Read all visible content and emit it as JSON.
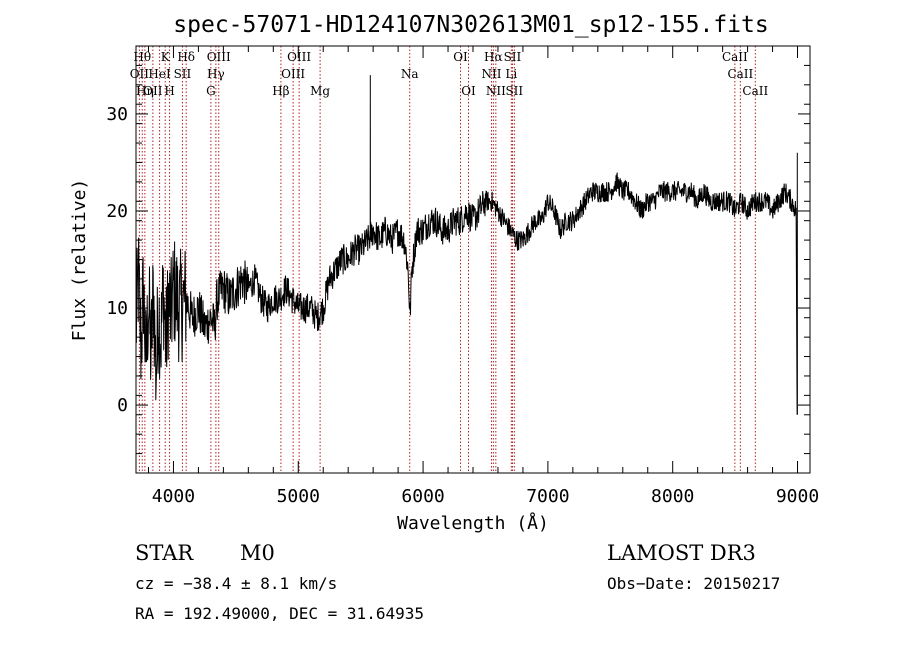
{
  "chart_data": {
    "type": "line",
    "title": "spec-57071-HD124107N302613M01_sp12-155.fits",
    "xlabel": "Wavelength (Å)",
    "ylabel": "Flux (relative)",
    "xlim": [
      3700,
      9100
    ],
    "ylim": [
      -7,
      37
    ],
    "xticks": [
      4000,
      5000,
      6000,
      7000,
      8000,
      9000
    ],
    "yticks": [
      0,
      10,
      20,
      30
    ],
    "series": [
      {
        "name": "flux",
        "anchors": [
          [
            3700,
            8
          ],
          [
            3720,
            13
          ],
          [
            3740,
            6
          ],
          [
            3760,
            12
          ],
          [
            3780,
            4
          ],
          [
            3800,
            11
          ],
          [
            3820,
            5
          ],
          [
            3840,
            12
          ],
          [
            3860,
            3
          ],
          [
            3880,
            10
          ],
          [
            3900,
            7
          ],
          [
            3920,
            12
          ],
          [
            3940,
            6
          ],
          [
            3960,
            11
          ],
          [
            3980,
            9
          ],
          [
            4000,
            12
          ],
          [
            4050,
            10
          ],
          [
            4100,
            11
          ],
          [
            4150,
            9
          ],
          [
            4200,
            10
          ],
          [
            4250,
            8
          ],
          [
            4300,
            9
          ],
          [
            4330,
            8
          ],
          [
            4350,
            11
          ],
          [
            4400,
            12
          ],
          [
            4450,
            11
          ],
          [
            4500,
            12
          ],
          [
            4550,
            13
          ],
          [
            4600,
            12
          ],
          [
            4650,
            13
          ],
          [
            4700,
            11
          ],
          [
            4750,
            10
          ],
          [
            4800,
            11
          ],
          [
            4850,
            11
          ],
          [
            4900,
            12
          ],
          [
            4950,
            11
          ],
          [
            5000,
            10
          ],
          [
            5050,
            10
          ],
          [
            5100,
            10
          ],
          [
            5150,
            9
          ],
          [
            5200,
            10
          ],
          [
            5250,
            13
          ],
          [
            5300,
            14
          ],
          [
            5350,
            15
          ],
          [
            5400,
            15
          ],
          [
            5450,
            16
          ],
          [
            5500,
            16
          ],
          [
            5560,
            17
          ],
          [
            5600,
            18
          ],
          [
            5650,
            17
          ],
          [
            5700,
            18
          ],
          [
            5750,
            17
          ],
          [
            5800,
            18
          ],
          [
            5850,
            17
          ],
          [
            5880,
            14
          ],
          [
            5895,
            9
          ],
          [
            5910,
            14
          ],
          [
            5950,
            18
          ],
          [
            6000,
            18
          ],
          [
            6050,
            19
          ],
          [
            6100,
            19
          ],
          [
            6150,
            18
          ],
          [
            6200,
            18
          ],
          [
            6250,
            19
          ],
          [
            6300,
            19
          ],
          [
            6350,
            20
          ],
          [
            6400,
            19
          ],
          [
            6450,
            20
          ],
          [
            6500,
            21
          ],
          [
            6550,
            21
          ],
          [
            6600,
            20
          ],
          [
            6650,
            19
          ],
          [
            6700,
            18
          ],
          [
            6750,
            17
          ],
          [
            6800,
            17
          ],
          [
            6850,
            18
          ],
          [
            6900,
            19
          ],
          [
            6950,
            19
          ],
          [
            7000,
            21
          ],
          [
            7050,
            20
          ],
          [
            7100,
            18
          ],
          [
            7150,
            19
          ],
          [
            7200,
            19
          ],
          [
            7250,
            20
          ],
          [
            7300,
            21
          ],
          [
            7350,
            22
          ],
          [
            7400,
            22
          ],
          [
            7450,
            22
          ],
          [
            7500,
            22
          ],
          [
            7550,
            23
          ],
          [
            7600,
            22
          ],
          [
            7650,
            22
          ],
          [
            7700,
            21
          ],
          [
            7750,
            20
          ],
          [
            7800,
            21
          ],
          [
            7850,
            21
          ],
          [
            7900,
            22
          ],
          [
            7950,
            22
          ],
          [
            8000,
            22
          ],
          [
            8050,
            22
          ],
          [
            8100,
            22
          ],
          [
            8150,
            22
          ],
          [
            8200,
            21
          ],
          [
            8250,
            22
          ],
          [
            8300,
            21
          ],
          [
            8350,
            21
          ],
          [
            8400,
            21
          ],
          [
            8450,
            21
          ],
          [
            8500,
            20
          ],
          [
            8550,
            21
          ],
          [
            8600,
            20
          ],
          [
            8650,
            21
          ],
          [
            8700,
            21
          ],
          [
            8750,
            21
          ],
          [
            8800,
            20
          ],
          [
            8850,
            21
          ],
          [
            8900,
            22
          ],
          [
            8950,
            21
          ],
          [
            8990,
            20
          ]
        ],
        "spikes": [
          {
            "x": 5577,
            "y": 34,
            "base": 17
          },
          {
            "x": 8998,
            "y": 26,
            "base": -1
          }
        ]
      }
    ],
    "lines": [
      {
        "wave": 3727,
        "label": "OII",
        "row": 2
      },
      {
        "wave": 3750,
        "label": "Hθ",
        "row": 1
      },
      {
        "wave": 3771,
        "label": "Hη",
        "row": 3
      },
      {
        "wave": 3835,
        "label": "OII",
        "row": 3
      },
      {
        "wave": 3889,
        "label": "HeI",
        "row": 2
      },
      {
        "wave": 3934,
        "label": "K",
        "row": 1
      },
      {
        "wave": 3969,
        "label": "H",
        "row": 3
      },
      {
        "wave": 4072,
        "label": "SII",
        "row": 2
      },
      {
        "wave": 4102,
        "label": "Hδ",
        "row": 1
      },
      {
        "wave": 4300,
        "label": "G",
        "row": 3
      },
      {
        "wave": 4340,
        "label": "Hγ",
        "row": 2
      },
      {
        "wave": 4363,
        "label": "OIII",
        "row": 1
      },
      {
        "wave": 4861,
        "label": "Hβ",
        "row": 3
      },
      {
        "wave": 4959,
        "label": "OIII",
        "row": 2
      },
      {
        "wave": 5007,
        "label": "OIII",
        "row": 1
      },
      {
        "wave": 5175,
        "label": "Mg",
        "row": 3
      },
      {
        "wave": 5893,
        "label": "Na",
        "row": 2
      },
      {
        "wave": 6300,
        "label": "OI",
        "row": 1
      },
      {
        "wave": 6364,
        "label": "OI",
        "row": 3
      },
      {
        "wave": 6548,
        "label": "NII",
        "row": 2
      },
      {
        "wave": 6563,
        "label": "Hα",
        "row": 1
      },
      {
        "wave": 6583,
        "label": "NII",
        "row": 3
      },
      {
        "wave": 6707,
        "label": "Li",
        "row": 2
      },
      {
        "wave": 6716,
        "label": "SII",
        "row": 1
      },
      {
        "wave": 6731,
        "label": "SII",
        "row": 3
      },
      {
        "wave": 8498,
        "label": "CaII",
        "row": 1
      },
      {
        "wave": 8542,
        "label": "CaII",
        "row": 2
      },
      {
        "wave": 8662,
        "label": "CaII",
        "row": 3
      }
    ]
  },
  "footer": {
    "obj_class": "STAR",
    "subclass": "M0",
    "survey": "LAMOST DR3",
    "cz": "cz = −38.4 ± 8.1 km/s",
    "obs_date": "Obs−Date: 20150217",
    "coords": "RA = 192.49000, DEC =  31.64935"
  },
  "colors": {
    "line_marker": "#b22222",
    "spectrum": "#000000"
  }
}
